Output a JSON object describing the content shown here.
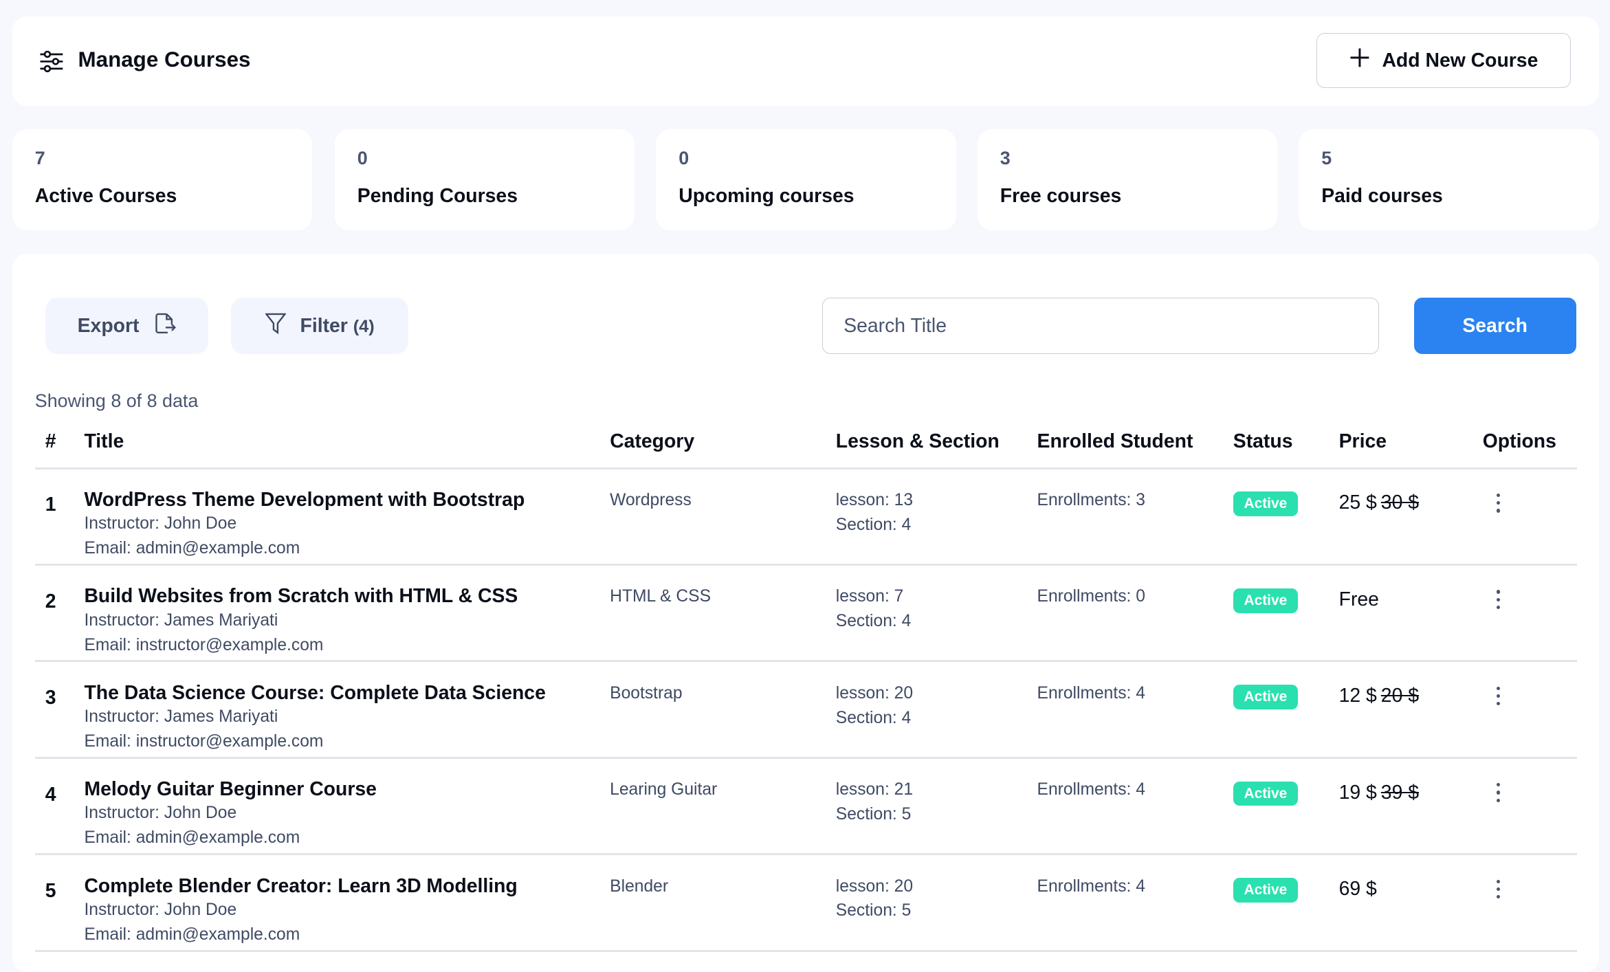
{
  "header": {
    "title": "Manage Courses",
    "add_button": "Add New Course"
  },
  "stats": [
    {
      "value": "7",
      "label": "Active Courses"
    },
    {
      "value": "0",
      "label": "Pending Courses"
    },
    {
      "value": "0",
      "label": "Upcoming courses"
    },
    {
      "value": "3",
      "label": "Free courses"
    },
    {
      "value": "5",
      "label": "Paid courses"
    }
  ],
  "toolbar": {
    "export": "Export",
    "filter": "Filter",
    "filter_count": "(4)",
    "search_placeholder": "Search Title",
    "search_button": "Search"
  },
  "showing": "Showing 8 of 8 data",
  "columns": [
    "#",
    "Title",
    "Category",
    "Lesson & Section",
    "Enrolled Student",
    "Status",
    "Price",
    "Options"
  ],
  "rows": [
    {
      "n": "1",
      "title": "WordPress Theme Development with Bootstrap",
      "instructor": "Instructor: John Doe",
      "email": "Email: admin@example.com",
      "category": "Wordpress",
      "lesson": "lesson: 13",
      "section": "Section: 4",
      "enrollments": "Enrollments: 3",
      "status": "Active",
      "price": "25 $",
      "old_price": "30 $"
    },
    {
      "n": "2",
      "title": "Build Websites from Scratch with HTML & CSS",
      "instructor": "Instructor: James Mariyati",
      "email": "Email: instructor@example.com",
      "category": "HTML & CSS",
      "lesson": "lesson: 7",
      "section": "Section: 4",
      "enrollments": "Enrollments: 0",
      "status": "Active",
      "price": "Free",
      "old_price": ""
    },
    {
      "n": "3",
      "title": "The Data Science Course: Complete Data Science",
      "instructor": "Instructor: James Mariyati",
      "email": "Email: instructor@example.com",
      "category": "Bootstrap",
      "lesson": "lesson: 20",
      "section": "Section: 4",
      "enrollments": "Enrollments: 4",
      "status": "Active",
      "price": "12 $",
      "old_price": "20 $"
    },
    {
      "n": "4",
      "title": "Melody Guitar Beginner Course",
      "instructor": "Instructor: John Doe",
      "email": "Email: admin@example.com",
      "category": "Learing Guitar",
      "lesson": "lesson: 21",
      "section": "Section: 5",
      "enrollments": "Enrollments: 4",
      "status": "Active",
      "price": "19 $",
      "old_price": "39 $"
    },
    {
      "n": "5",
      "title": "Complete Blender Creator: Learn 3D Modelling",
      "instructor": "Instructor: John Doe",
      "email": "Email: admin@example.com",
      "category": "Blender",
      "lesson": "lesson: 20",
      "section": "Section: 5",
      "enrollments": "Enrollments: 4",
      "status": "Active",
      "price": "69 $",
      "old_price": ""
    }
  ],
  "colors": {
    "primary": "#2a83f0",
    "active_badge": "#2ae0ae",
    "background": "#f6f8fd"
  },
  "icons": {
    "header": "sliders-icon",
    "add": "plus-icon",
    "export": "file-export-icon",
    "filter": "funnel-icon",
    "options": "more-vertical-icon"
  }
}
